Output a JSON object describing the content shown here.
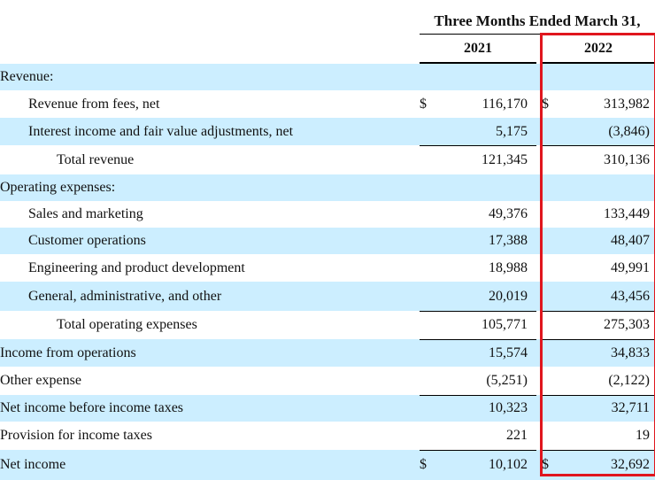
{
  "header": {
    "period": "Three Months Ended March 31,",
    "year_2021": "2021",
    "year_2022": "2022"
  },
  "rows": [
    {
      "label": "Revenue:",
      "v2021": "",
      "v2022": ""
    },
    {
      "label": "Revenue from fees, net",
      "cur2021": "$",
      "v2021": "116,170",
      "cur2022": "$",
      "v2022": "313,982"
    },
    {
      "label": "Interest income and fair value adjustments, net",
      "v2021": "5,175",
      "v2022": "(3,846)"
    },
    {
      "label": "Total revenue",
      "v2021": "121,345",
      "v2022": "310,136"
    },
    {
      "label": "Operating expenses:",
      "v2021": "",
      "v2022": ""
    },
    {
      "label": "Sales and marketing",
      "v2021": "49,376",
      "v2022": "133,449"
    },
    {
      "label": "Customer operations",
      "v2021": "17,388",
      "v2022": "48,407"
    },
    {
      "label": "Engineering and product development",
      "v2021": "18,988",
      "v2022": "49,991"
    },
    {
      "label": "General, administrative, and other",
      "v2021": "20,019",
      "v2022": "43,456"
    },
    {
      "label": "Total operating expenses",
      "v2021": "105,771",
      "v2022": "275,303"
    },
    {
      "label": "Income from operations",
      "v2021": "15,574",
      "v2022": "34,833"
    },
    {
      "label": "Other expense",
      "v2021": "(5,251)",
      "v2022": "(2,122)"
    },
    {
      "label": "Net income before income taxes",
      "v2021": "10,323",
      "v2022": "32,711"
    },
    {
      "label": "Provision for income taxes",
      "v2021": "221",
      "v2022": "19"
    },
    {
      "label": "Net income",
      "cur2021": "$",
      "v2021": "10,102",
      "cur2022": "$",
      "v2022": "32,692"
    }
  ],
  "highlight_color": "#e0161e",
  "shade_color": "#cceeff"
}
